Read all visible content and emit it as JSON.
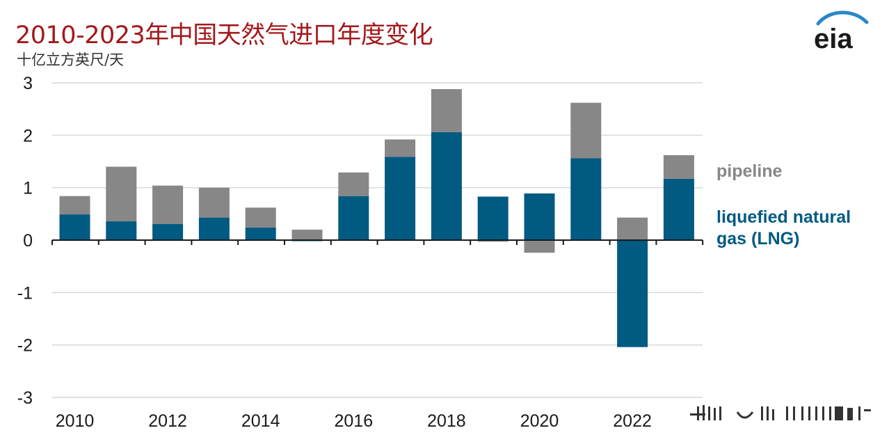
{
  "title": "2010-2023年中国天然气进口年度变化",
  "unit_label": "十亿立方英尺/天",
  "logo_text": "eia",
  "colors": {
    "title": "#a3191c",
    "lng": "#005a82",
    "pipeline": "#878787",
    "gridline": "#d9d9d9",
    "axis": "#1a1a1a"
  },
  "chart_data": {
    "type": "bar",
    "stacked": true,
    "title": "2010-2023年中国天然气进口年度变化",
    "ylabel": "十亿立方英尺/天",
    "xlabel": "",
    "ylim": [
      -3,
      3
    ],
    "yticks": [
      3,
      2,
      1,
      0,
      -1,
      -2,
      -3
    ],
    "grid": true,
    "legend_placement": "right (inline labels)",
    "categories": [
      "2010",
      "2011",
      "2012",
      "2013",
      "2014",
      "2015",
      "2016",
      "2017",
      "2018",
      "2019",
      "2020",
      "2021",
      "2022",
      "2023"
    ],
    "xtick_labels": [
      "2010",
      "",
      "2012",
      "",
      "2014",
      "",
      "2016",
      "",
      "2018",
      "",
      "2020",
      "",
      "2022",
      ""
    ],
    "series": [
      {
        "name": "liquefied natural gas (LNG)",
        "color": "#005a82",
        "values": [
          0.49,
          0.36,
          0.31,
          0.43,
          0.24,
          -0.02,
          0.84,
          1.59,
          2.06,
          0.83,
          0.89,
          1.56,
          -2.04,
          1.17
        ]
      },
      {
        "name": "pipeline",
        "color": "#878787",
        "values": [
          0.35,
          1.04,
          0.73,
          0.57,
          0.38,
          0.2,
          0.45,
          0.33,
          0.82,
          -0.03,
          -0.24,
          1.06,
          0.43,
          0.45
        ]
      }
    ]
  },
  "legend": {
    "pipeline": "pipeline",
    "lng_line1": "liquefied natural",
    "lng_line2": "gas (LNG)"
  }
}
